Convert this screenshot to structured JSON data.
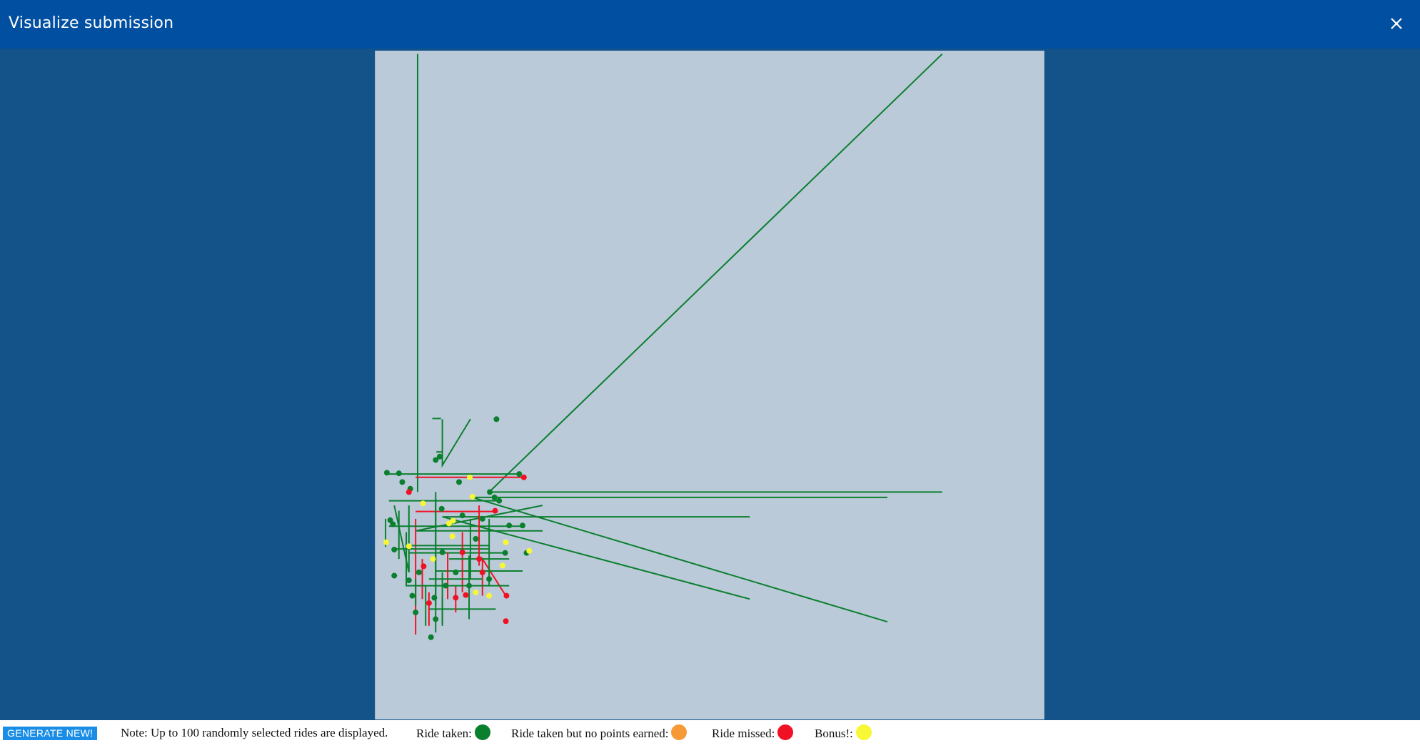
{
  "header": {
    "title": "Visualize submission",
    "close_icon": "close-icon"
  },
  "footer": {
    "generate_label": "GENERATE NEW!",
    "note": "Note: Up to 100 randomly selected rides are displayed.",
    "legend": [
      {
        "label": "Ride taken:",
        "color": "#0a7f2e"
      },
      {
        "label": "Ride taken but no points earned:",
        "color": "#f59a36"
      },
      {
        "label": "Ride missed:",
        "color": "#f01224"
      },
      {
        "label": "Bonus!:",
        "color": "#f7f736"
      }
    ]
  },
  "colors": {
    "taken": "#0a7f2e",
    "missed": "#f01224",
    "bonus": "#f7f736"
  },
  "rides": [
    {
      "status": "taken",
      "from": [
        0.063,
        0.005
      ],
      "to": [
        0.063,
        0.66
      ]
    },
    {
      "status": "taken",
      "from": [
        0.848,
        0.005
      ],
      "to": [
        0.848,
        0.66
      ],
      "via": [
        0.17,
        0.66
      ]
    },
    {
      "status": "taken",
      "from": [
        0.142,
        0.551
      ],
      "to": [
        0.1,
        0.551
      ],
      "via": [
        0.1,
        0.62
      ]
    },
    {
      "status": "taken",
      "from": [
        0.766,
        0.854
      ],
      "to": [
        0.766,
        0.668
      ],
      "via": [
        0.145,
        0.668
      ]
    },
    {
      "status": "taken",
      "from": [
        0.56,
        0.82
      ],
      "to": [
        0.56,
        0.697
      ],
      "via": [
        0.1,
        0.697
      ]
    },
    {
      "status": "taken",
      "from": [
        0.25,
        0.68
      ],
      "to": [
        0.25,
        0.718
      ],
      "via": [
        0.06,
        0.718
      ]
    },
    {
      "status": "missed",
      "from": [
        0.221,
        0.638
      ],
      "to": [
        0.06,
        0.638
      ]
    },
    {
      "status": "taken",
      "from": [
        0.216,
        0.633
      ],
      "to": [
        0.02,
        0.633
      ]
    },
    {
      "status": "taken",
      "from": [
        0.091,
        0.6
      ],
      "to": [
        0.1,
        0.6
      ]
    },
    {
      "status": "missed",
      "from": [
        0.195,
        0.815
      ],
      "to": [
        0.16,
        0.815
      ],
      "via": [
        0.16,
        0.76
      ]
    },
    {
      "status": "missed",
      "from": [
        0.06,
        0.7
      ],
      "to": [
        0.06,
        0.873
      ]
    },
    {
      "status": "taken",
      "from": [
        0.08,
        0.835
      ],
      "to": [
        0.18,
        0.835
      ]
    },
    {
      "status": "taken",
      "from": [
        0.09,
        0.778
      ],
      "to": [
        0.22,
        0.778
      ]
    },
    {
      "status": "taken",
      "from": [
        0.195,
        0.751
      ],
      "to": [
        0.05,
        0.751
      ]
    },
    {
      "status": "taken",
      "from": [
        0.22,
        0.711
      ],
      "to": [
        0.02,
        0.711
      ]
    },
    {
      "status": "taken",
      "from": [
        0.186,
        0.673
      ],
      "to": [
        0.02,
        0.673
      ]
    },
    {
      "status": "missed",
      "from": [
        0.18,
        0.689
      ],
      "to": [
        0.06,
        0.689
      ]
    },
    {
      "status": "taken",
      "from": [
        0.015,
        0.7
      ],
      "to": [
        0.015,
        0.742
      ]
    },
    {
      "status": "taken",
      "from": [
        0.028,
        0.68
      ],
      "to": [
        0.05,
        0.68
      ],
      "via": [
        0.05,
        0.78
      ]
    },
    {
      "status": "taken",
      "from": [
        0.05,
        0.74
      ],
      "to": [
        0.17,
        0.74
      ]
    },
    {
      "status": "missed",
      "from": [
        0.13,
        0.72
      ],
      "to": [
        0.13,
        0.81
      ]
    },
    {
      "status": "taken",
      "from": [
        0.14,
        0.755
      ],
      "to": [
        0.14,
        0.85
      ]
    },
    {
      "status": "taken",
      "from": [
        0.09,
        0.66
      ],
      "to": [
        0.09,
        0.83
      ]
    },
    {
      "status": "taken",
      "from": [
        0.06,
        0.79
      ],
      "to": [
        0.06,
        0.83
      ]
    },
    {
      "status": "taken",
      "from": [
        0.03,
        0.745
      ],
      "to": [
        0.17,
        0.745
      ]
    },
    {
      "status": "taken",
      "from": [
        0.1,
        0.78
      ],
      "to": [
        0.1,
        0.86
      ]
    },
    {
      "status": "taken",
      "from": [
        0.085,
        0.55
      ],
      "to": [
        0.098,
        0.55
      ]
    },
    {
      "status": "missed",
      "from": [
        0.108,
        0.75
      ],
      "to": [
        0.108,
        0.82
      ]
    },
    {
      "status": "taken",
      "from": [
        0.11,
        0.76
      ],
      "to": [
        0.2,
        0.76
      ]
    },
    {
      "status": "taken",
      "from": [
        0.046,
        0.72
      ],
      "to": [
        0.046,
        0.8
      ]
    },
    {
      "status": "missed",
      "from": [
        0.12,
        0.8
      ],
      "to": [
        0.12,
        0.84
      ]
    },
    {
      "status": "missed",
      "from": [
        0.07,
        0.76
      ],
      "to": [
        0.07,
        0.82
      ]
    },
    {
      "status": "taken",
      "from": [
        0.035,
        0.688
      ],
      "to": [
        0.035,
        0.76
      ]
    },
    {
      "status": "taken",
      "from": [
        0.16,
        0.79
      ],
      "to": [
        0.08,
        0.79
      ]
    },
    {
      "status": "taken",
      "from": [
        0.142,
        0.7
      ],
      "to": [
        0.142,
        0.79
      ]
    },
    {
      "status": "missed",
      "from": [
        0.155,
        0.68
      ],
      "to": [
        0.155,
        0.77
      ]
    },
    {
      "status": "taken",
      "from": [
        0.17,
        0.7
      ],
      "to": [
        0.17,
        0.8
      ]
    },
    {
      "status": "taken",
      "from": [
        0.075,
        0.8
      ],
      "to": [
        0.075,
        0.86
      ]
    },
    {
      "status": "taken",
      "from": [
        0.045,
        0.8
      ],
      "to": [
        0.2,
        0.8
      ]
    },
    {
      "status": "missed",
      "from": [
        0.08,
        0.81
      ],
      "to": [
        0.08,
        0.86
      ]
    },
    {
      "status": "taken",
      "from": [
        0.09,
        0.67
      ],
      "to": [
        0.09,
        0.87
      ],
      "via": [
        0.09,
        0.87
      ]
    },
    {
      "status": "taken",
      "from": [
        0.1,
        0.815
      ],
      "to": [
        0.1,
        0.857
      ]
    }
  ],
  "points": [
    {
      "status": "taken",
      "at": [
        0.181,
        0.551
      ]
    },
    {
      "status": "taken",
      "at": [
        0.096,
        0.607
      ]
    },
    {
      "status": "taken",
      "at": [
        0.09,
        0.612
      ]
    },
    {
      "status": "taken",
      "at": [
        0.017,
        0.631
      ]
    },
    {
      "status": "taken",
      "at": [
        0.035,
        0.632
      ]
    },
    {
      "status": "missed",
      "at": [
        0.222,
        0.638
      ]
    },
    {
      "status": "taken",
      "at": [
        0.215,
        0.633
      ]
    },
    {
      "status": "bonus",
      "at": [
        0.141,
        0.638
      ]
    },
    {
      "status": "taken",
      "at": [
        0.04,
        0.645
      ]
    },
    {
      "status": "taken",
      "at": [
        0.125,
        0.645
      ]
    },
    {
      "status": "taken",
      "at": [
        0.052,
        0.655
      ]
    },
    {
      "status": "missed",
      "at": [
        0.05,
        0.66
      ]
    },
    {
      "status": "taken",
      "at": [
        0.171,
        0.66
      ]
    },
    {
      "status": "bonus",
      "at": [
        0.145,
        0.667
      ]
    },
    {
      "status": "taken",
      "at": [
        0.185,
        0.673
      ]
    },
    {
      "status": "missed",
      "at": [
        0.179,
        0.688
      ]
    },
    {
      "status": "taken",
      "at": [
        0.022,
        0.702
      ]
    },
    {
      "status": "taken",
      "at": [
        0.026,
        0.708
      ]
    },
    {
      "status": "bonus",
      "at": [
        0.11,
        0.707
      ]
    },
    {
      "status": "taken",
      "at": [
        0.2,
        0.71
      ]
    },
    {
      "status": "bonus",
      "at": [
        0.116,
        0.703
      ]
    },
    {
      "status": "taken",
      "at": [
        0.22,
        0.71
      ]
    },
    {
      "status": "bonus",
      "at": [
        0.115,
        0.726
      ]
    },
    {
      "status": "taken",
      "at": [
        0.194,
        0.751
      ]
    },
    {
      "status": "bonus",
      "at": [
        0.195,
        0.735
      ]
    },
    {
      "status": "bonus",
      "at": [
        0.016,
        0.735
      ]
    },
    {
      "status": "taken",
      "at": [
        0.028,
        0.746
      ]
    },
    {
      "status": "bonus",
      "at": [
        0.05,
        0.741
      ]
    },
    {
      "status": "taken",
      "at": [
        0.226,
        0.751
      ]
    },
    {
      "status": "bonus",
      "at": [
        0.23,
        0.748
      ]
    },
    {
      "status": "missed",
      "at": [
        0.13,
        0.75
      ]
    },
    {
      "status": "bonus",
      "at": [
        0.19,
        0.77
      ]
    },
    {
      "status": "missed",
      "at": [
        0.072,
        0.771
      ]
    },
    {
      "status": "taken",
      "at": [
        0.028,
        0.785
      ]
    },
    {
      "status": "taken",
      "at": [
        0.05,
        0.792
      ]
    },
    {
      "status": "taken",
      "at": [
        0.14,
        0.8
      ]
    },
    {
      "status": "taken",
      "at": [
        0.105,
        0.8
      ]
    },
    {
      "status": "missed",
      "at": [
        0.135,
        0.814
      ]
    },
    {
      "status": "bonus",
      "at": [
        0.15,
        0.81
      ]
    },
    {
      "status": "bonus",
      "at": [
        0.17,
        0.815
      ]
    },
    {
      "status": "taken",
      "at": [
        0.055,
        0.815
      ]
    },
    {
      "status": "taken",
      "at": [
        0.088,
        0.818
      ]
    },
    {
      "status": "missed",
      "at": [
        0.08,
        0.826
      ]
    },
    {
      "status": "missed",
      "at": [
        0.12,
        0.818
      ]
    },
    {
      "status": "taken",
      "at": [
        0.06,
        0.84
      ]
    },
    {
      "status": "taken",
      "at": [
        0.09,
        0.85
      ]
    },
    {
      "status": "taken",
      "at": [
        0.083,
        0.877
      ]
    },
    {
      "status": "missed",
      "at": [
        0.196,
        0.815
      ]
    },
    {
      "status": "missed",
      "at": [
        0.195,
        0.853
      ]
    },
    {
      "status": "taken",
      "at": [
        0.178,
        0.668
      ]
    },
    {
      "status": "bonus",
      "at": [
        0.071,
        0.677
      ]
    },
    {
      "status": "taken",
      "at": [
        0.099,
        0.685
      ]
    },
    {
      "status": "taken",
      "at": [
        0.13,
        0.695
      ]
    },
    {
      "status": "taken",
      "at": [
        0.16,
        0.7
      ]
    },
    {
      "status": "bonus",
      "at": [
        0.086,
        0.76
      ]
    },
    {
      "status": "taken",
      "at": [
        0.12,
        0.78
      ]
    },
    {
      "status": "taken",
      "at": [
        0.15,
        0.73
      ]
    },
    {
      "status": "taken",
      "at": [
        0.065,
        0.78
      ]
    },
    {
      "status": "missed",
      "at": [
        0.155,
        0.76
      ]
    },
    {
      "status": "missed",
      "at": [
        0.16,
        0.78
      ]
    },
    {
      "status": "taken",
      "at": [
        0.1,
        0.75
      ]
    },
    {
      "status": "taken",
      "at": [
        0.17,
        0.79
      ]
    }
  ]
}
